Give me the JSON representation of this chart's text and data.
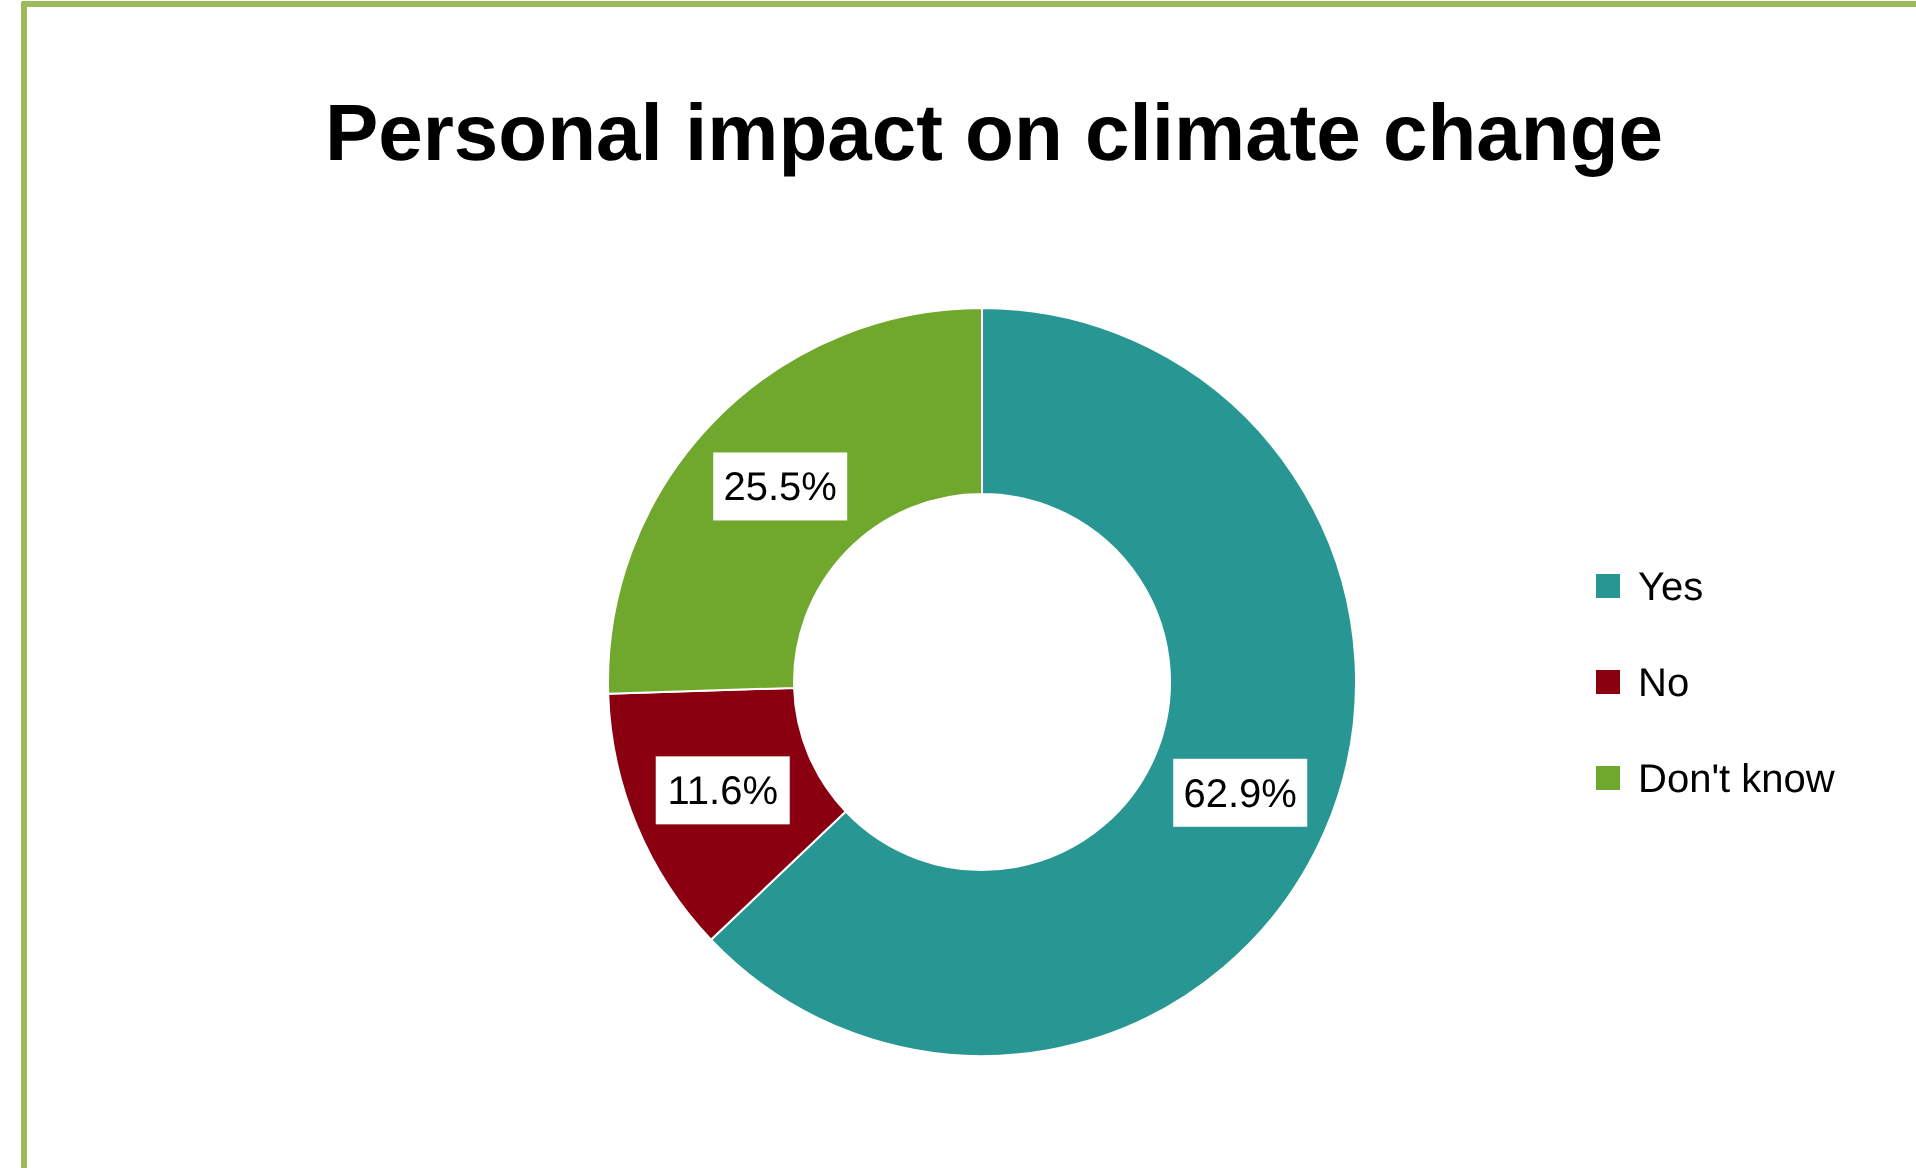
{
  "chart_data": {
    "type": "donut",
    "title": "Personal impact on climate change",
    "categories": [
      "Yes",
      "No",
      "Don't know"
    ],
    "values": [
      62.9,
      11.6,
      25.5
    ],
    "colors": [
      "#289793",
      "#8b0010",
      "#70a82e"
    ],
    "value_labels": [
      "62.9%",
      "11.6%",
      "25.5%"
    ],
    "legend": "right"
  }
}
